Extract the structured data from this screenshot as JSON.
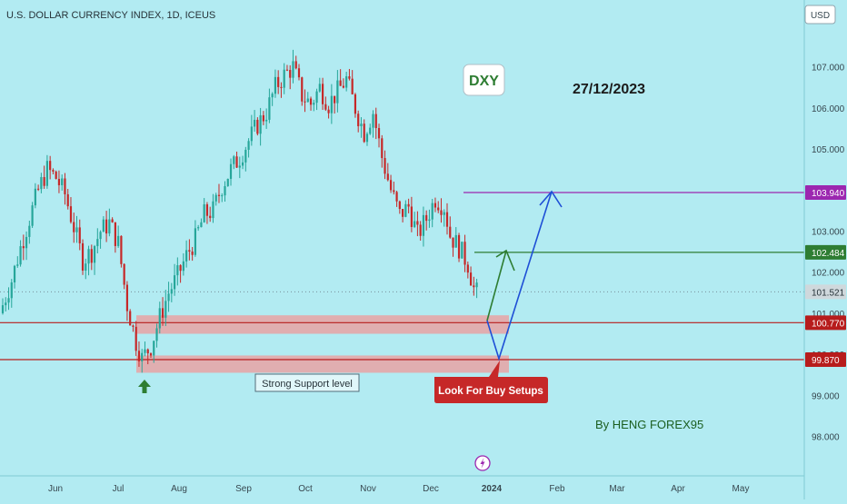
{
  "header": {
    "title": "U.S. DOLLAR CURRENCY INDEX, 1D, ICEUS",
    "currency": "USD"
  },
  "annotations": {
    "symbol_label": "DXY",
    "date_label": "27/12/2023",
    "support_label": "Strong Support level",
    "callout_label": "Look For Buy Setups",
    "author_label": "By HENG FOREX95"
  },
  "price_tags": [
    {
      "value": "103.940",
      "color": "#9c27b0"
    },
    {
      "value": "102.484",
      "color": "#2e7d32"
    },
    {
      "value": "101.521",
      "color": "#9e9e9e"
    },
    {
      "value": "100.770",
      "color": "#b71c1c"
    },
    {
      "value": "99.870",
      "color": "#b71c1c"
    }
  ],
  "chart_data": {
    "type": "candlestick",
    "title": "U.S. DOLLAR CURRENCY INDEX, 1D, ICEUS",
    "y_tick_labels": [
      "107.000",
      "106.000",
      "105.000",
      "103.000",
      "102.000",
      "101.000",
      "100.000",
      "99.000",
      "98.000"
    ],
    "x_tick_labels": [
      "Jun",
      "Jul",
      "Aug",
      "Sep",
      "Oct",
      "Nov",
      "Dec",
      "2024",
      "Feb",
      "Mar",
      "Apr",
      "May"
    ],
    "ylim": [
      97.5,
      108.2
    ],
    "close_series": [
      [
        0,
        101.2
      ],
      [
        3,
        101.8
      ],
      [
        6,
        102.6
      ],
      [
        9,
        103.3
      ],
      [
        12,
        104.0
      ],
      [
        15,
        104.5
      ],
      [
        18,
        104.3
      ],
      [
        21,
        103.9
      ],
      [
        24,
        103.1
      ],
      [
        27,
        102.3
      ],
      [
        30,
        102.5
      ],
      [
        33,
        103.0
      ],
      [
        36,
        103.2
      ],
      [
        39,
        102.7
      ],
      [
        42,
        101.2
      ],
      [
        45,
        100.3
      ],
      [
        47,
        99.9
      ],
      [
        50,
        100.2
      ],
      [
        53,
        100.9
      ],
      [
        56,
        101.5
      ],
      [
        59,
        101.9
      ],
      [
        62,
        102.4
      ],
      [
        65,
        102.8
      ],
      [
        68,
        103.4
      ],
      [
        71,
        103.5
      ],
      [
        74,
        104.1
      ],
      [
        77,
        104.5
      ],
      [
        80,
        104.8
      ],
      [
        83,
        105.2
      ],
      [
        86,
        105.6
      ],
      [
        89,
        105.9
      ],
      [
        92,
        106.5
      ],
      [
        95,
        106.8
      ],
      [
        98,
        107.0
      ],
      [
        101,
        106.3
      ],
      [
        104,
        106.1
      ],
      [
        107,
        106.5
      ],
      [
        110,
        106.1
      ],
      [
        113,
        106.4
      ],
      [
        116,
        106.7
      ],
      [
        119,
        106.0
      ],
      [
        122,
        105.4
      ],
      [
        125,
        105.9
      ],
      [
        128,
        104.8
      ],
      [
        131,
        104.0
      ],
      [
        134,
        103.4
      ],
      [
        137,
        103.6
      ],
      [
        140,
        102.9
      ],
      [
        143,
        103.3
      ],
      [
        146,
        103.8
      ],
      [
        149,
        103.6
      ],
      [
        151,
        102.9
      ],
      [
        154,
        102.6
      ],
      [
        157,
        102.2
      ],
      [
        159,
        101.6
      ],
      [
        161,
        101.4
      ]
    ],
    "levels": [
      {
        "price": 103.94,
        "label": "103.940"
      },
      {
        "price": 102.484,
        "label": "102.484"
      },
      {
        "price": 101.521,
        "label": "101.521"
      },
      {
        "price": 100.77,
        "label": "100.770"
      },
      {
        "price": 99.87,
        "label": "99.870"
      }
    ],
    "support_zones": [
      [
        100.5,
        100.95
      ],
      [
        99.55,
        99.97
      ]
    ],
    "projections": [
      {
        "name": "",
        "path": [
          101.0,
          102.484
        ]
      },
      {
        "name": "",
        "path": [
          99.87,
          103.94
        ]
      }
    ],
    "colors": {
      "up": "#26a69a",
      "down": "#c62828",
      "background": "#b2ebf2"
    },
    "grid": false
  }
}
